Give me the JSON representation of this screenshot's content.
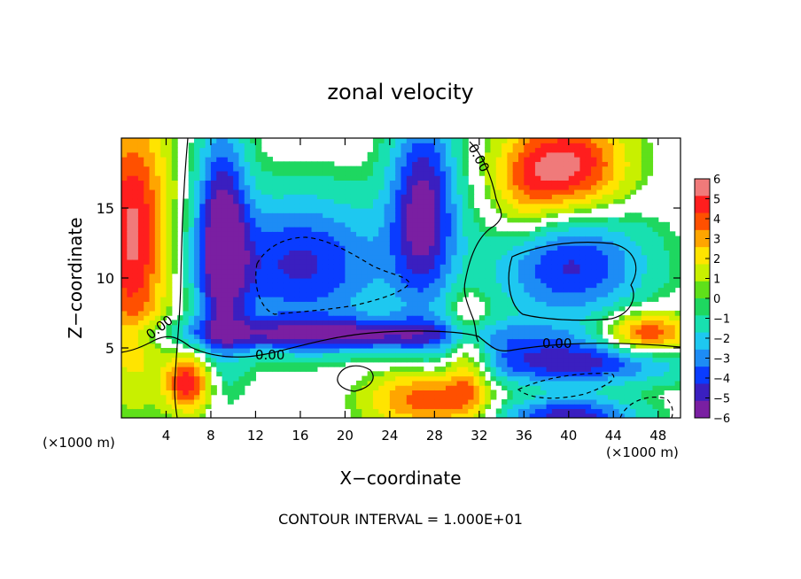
{
  "chart_data": {
    "type": "heatmap",
    "title": "zonal velocity",
    "xlabel": "X−coordinate",
    "ylabel": "Z−coordinate",
    "x_unit_left": "(×1000 m)",
    "x_unit_right": "(×1000 m)",
    "xlim": [
      0,
      50
    ],
    "ylim": [
      0,
      20
    ],
    "xticks": [
      4,
      8,
      12,
      16,
      20,
      24,
      28,
      32,
      36,
      40,
      44,
      48
    ],
    "yticks": [
      5,
      10,
      15
    ],
    "colorbar": {
      "labels": [
        "6",
        "5",
        "4",
        "3",
        "2",
        "1",
        "0",
        "−1",
        "−2",
        "−3",
        "−4",
        "−5",
        "−6"
      ],
      "min": -6,
      "max": 6
    },
    "contour_labels": [
      "0.00",
      "0.00",
      "0.00",
      "0.00"
    ],
    "footer": "CONTOUR INTERVAL = 1.000E+01",
    "white_band": [
      -0.5,
      0.5
    ]
  }
}
